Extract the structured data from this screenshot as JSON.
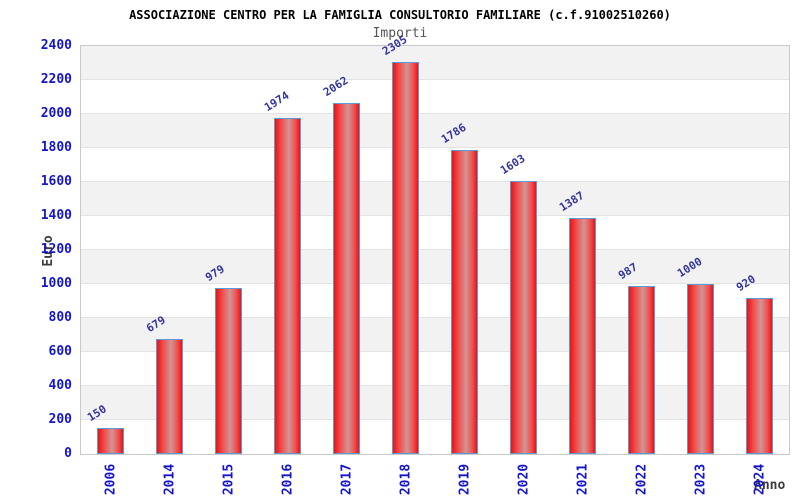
{
  "chart_data": {
    "type": "bar",
    "title": "ASSOCIAZIONE CENTRO PER LA FAMIGLIA CONSULTORIO FAMILIARE (c.f.91002510260)",
    "subtitle": "Importi",
    "xlabel": "Anno",
    "ylabel": "Euro",
    "categories": [
      "2006",
      "2014",
      "2015",
      "2016",
      "2017",
      "2018",
      "2019",
      "2020",
      "2021",
      "2022",
      "2023",
      "2024"
    ],
    "values": [
      150,
      679,
      979,
      1974,
      2062,
      2305,
      1786,
      1603,
      1387,
      987,
      1000,
      920
    ],
    "ylim": [
      0,
      2400
    ],
    "ytick_step": 200,
    "grid": true,
    "legend": "none",
    "colors": {
      "tick_label": "#1414cc",
      "value_label": "#34349e",
      "bar_edge": "#5b9bd5",
      "bar_red": "#ee1111",
      "bar_mid": "#ef4f4f",
      "bar_highlight": "#d29494",
      "band_gray": "#f2f2f2",
      "band_white": "#ffffff",
      "grid_line": "#e3e3e3",
      "plot_border": "#c9c9c9",
      "axis_title": "#3c3c3c",
      "title": "#000000",
      "subtitle": "#555555"
    }
  }
}
